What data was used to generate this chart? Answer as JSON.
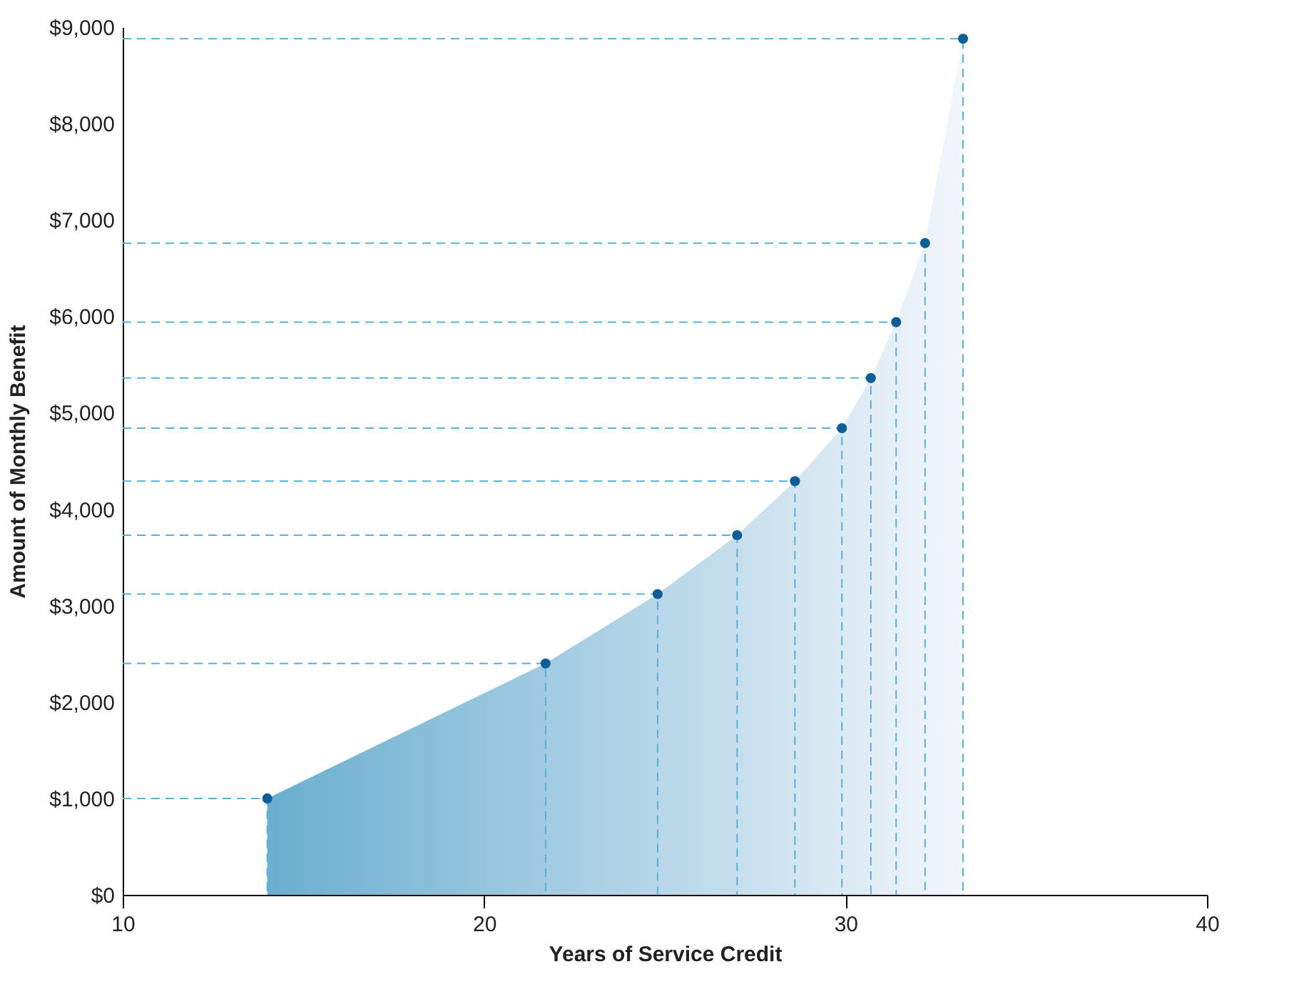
{
  "chart_data": {
    "type": "scatter",
    "xlabel": "Years of Service Credit",
    "ylabel": "Amount of Monthly Benefit",
    "x": [
      14,
      21.7,
      24.8,
      27,
      28.6,
      29.9,
      30.7,
      31.4,
      32.2,
      33.25
    ],
    "series": [
      {
        "type": "area",
        "color": "#6aaed0",
        "values": [
          1000,
          2400,
          3120,
          3730,
          4290,
          4840,
          5360,
          5940,
          6760,
          8880
        ]
      },
      {
        "type": "line",
        "color": "#5ab0d8",
        "line_style": "dashed",
        "x": [
          10,
          14,
          14,
          null,
          10,
          21.7,
          21.7,
          null,
          10,
          24.8,
          24.8,
          null,
          10,
          27,
          27,
          null,
          10,
          28.6,
          28.6,
          null,
          10,
          29.9,
          29.9,
          null,
          10,
          30.7,
          30.7,
          null,
          10,
          31.4,
          31.4,
          null,
          10,
          32.2,
          32.2,
          null,
          10,
          33.25,
          33.25
        ],
        "values": [
          1000,
          1000,
          0,
          null,
          2400,
          2400,
          0,
          null,
          3120,
          3120,
          0,
          null,
          3730,
          3730,
          0,
          null,
          4290,
          4290,
          0,
          null,
          4840,
          4840,
          0,
          null,
          5360,
          5360,
          0,
          null,
          5940,
          5940,
          0,
          null,
          6760,
          6760,
          0,
          null,
          8880,
          8880,
          0
        ]
      },
      {
        "color": "#0d5e96",
        "marker": "circle",
        "values": [
          1000,
          2400,
          3120,
          3730,
          4290,
          4840,
          5360,
          5940,
          6760,
          8880
        ]
      }
    ],
    "xlim": [
      10,
      40
    ],
    "xticks": [
      10,
      20,
      30,
      40
    ],
    "ylim": [
      0,
      9000
    ],
    "yticks": [
      {
        "value": 0,
        "label": "$0"
      },
      {
        "value": 1000,
        "label": "$1,000"
      },
      {
        "value": 2000,
        "label": "$2,000"
      },
      {
        "value": 3000,
        "label": "$3,000"
      },
      {
        "value": 4000,
        "label": "$4,000"
      },
      {
        "value": 5000,
        "label": "$5,000"
      },
      {
        "value": 6000,
        "label": "$6,000"
      },
      {
        "value": 7000,
        "label": "$7,000"
      },
      {
        "value": 8000,
        "label": "$8,000"
      },
      {
        "value": 9000,
        "label": "$9,000"
      }
    ],
    "grid": false
  }
}
